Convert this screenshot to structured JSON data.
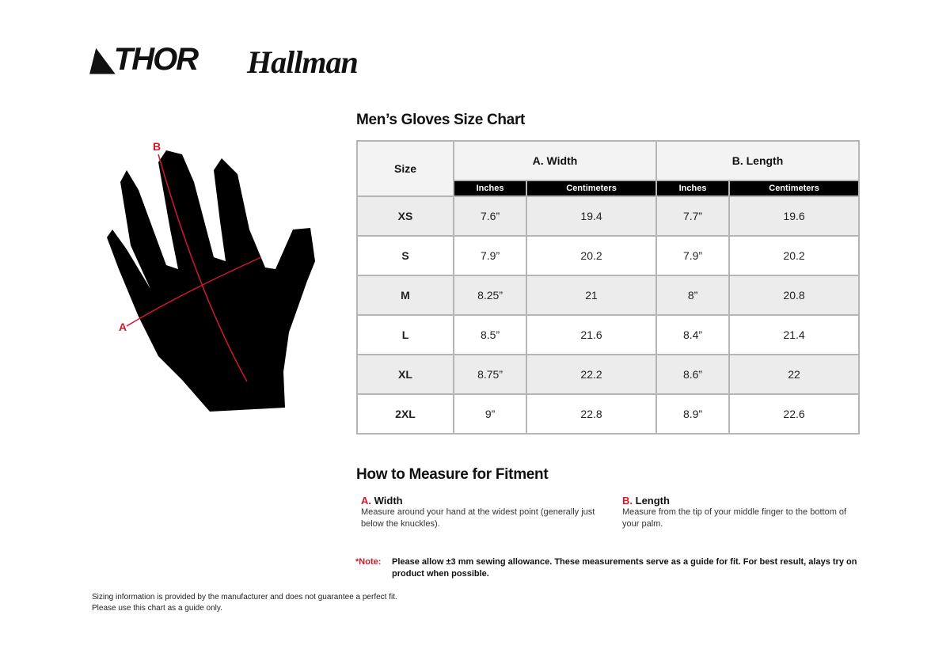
{
  "logos": {
    "thor": "THOR",
    "hallman": "Hallman"
  },
  "title": "Men’s Gloves Size Chart",
  "table": {
    "size_header": "Size",
    "groups": [
      "A. Width",
      "B. Length"
    ],
    "units": [
      "Inches",
      "Centimeters",
      "Inches",
      "Centimeters"
    ],
    "rows": [
      [
        "XS",
        "7.6”",
        "19.4",
        "7.7”",
        "19.6"
      ],
      [
        "S",
        "7.9”",
        "20.2",
        "7.9”",
        "20.2"
      ],
      [
        "M",
        "8.25”",
        "21",
        "8”",
        "20.8"
      ],
      [
        "L",
        "8.5”",
        "21.6",
        "8.4”",
        "21.4"
      ],
      [
        "XL",
        "8.75”",
        "22.2",
        "8.6”",
        "22"
      ],
      [
        "2XL",
        "9”",
        "22.8",
        "8.9”",
        "22.6"
      ]
    ]
  },
  "diagram": {
    "label_a": "A",
    "label_b": "B",
    "accent": "#d0192b"
  },
  "measure": {
    "title": "How to Measure for Fitment",
    "a": {
      "letter": "A.",
      "label": "Width",
      "text": "Measure around your hand at the widest point (generally just below the knuckles)."
    },
    "b": {
      "letter": "B.",
      "label": "Length",
      "text": "Measure from the tip of your middle finger to the bottom of your palm."
    }
  },
  "note": {
    "label": "*Note:",
    "text": "Please allow ±3 mm sewing allowance. These measurements serve as a guide for fit. For best result, alays try on product when possible."
  },
  "footer": [
    "Sizing information is provided by the manufacturer and does not guarantee a perfect fit.",
    "Please use this chart as a guide only."
  ]
}
